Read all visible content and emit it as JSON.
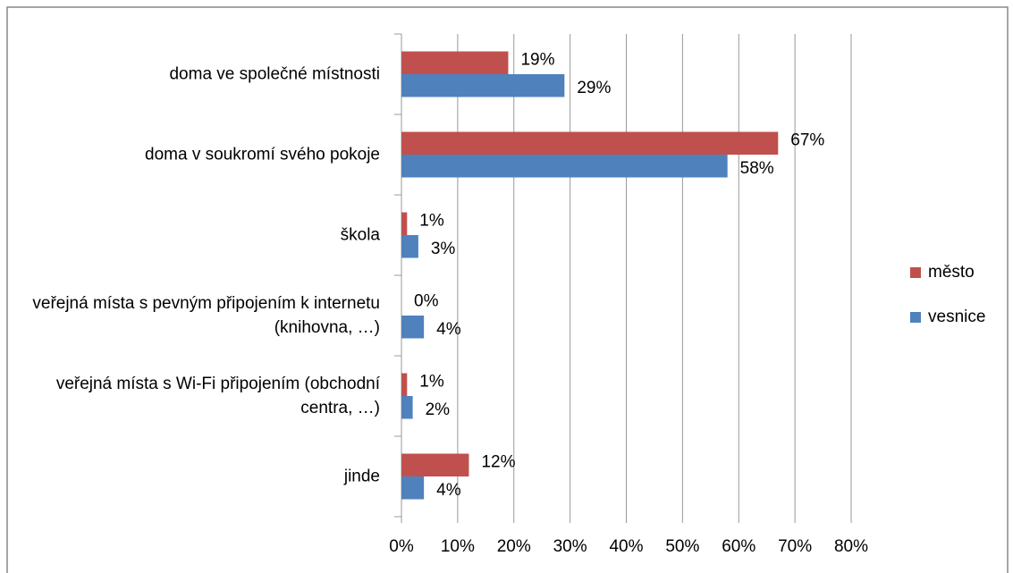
{
  "chart_data": {
    "type": "bar",
    "orientation": "horizontal",
    "categories": [
      "doma ve společné místnosti",
      "doma v soukromí svého pokoje",
      "škola",
      "veřejná místa s pevným připojením k internetu (knihovna, …)",
      "veřejná místa s Wi-Fi připojením (obchodní centra, …)",
      "jinde"
    ],
    "series": [
      {
        "name": "město",
        "color": "#c0504d",
        "values": [
          19,
          67,
          1,
          0,
          1,
          12
        ],
        "value_labels": [
          "19%",
          "67%",
          "1%",
          "0%",
          "1%",
          "12%"
        ]
      },
      {
        "name": "vesnice",
        "color": "#4f81bd",
        "values": [
          29,
          58,
          3,
          4,
          2,
          4
        ],
        "value_labels": [
          "29%",
          "58%",
          "3%",
          "4%",
          "2%",
          "4%"
        ]
      }
    ],
    "xlim": [
      0,
      80
    ],
    "xticks": [
      {
        "value": 0,
        "label": "0%"
      },
      {
        "value": 10,
        "label": "10%"
      },
      {
        "value": 20,
        "label": "20%"
      },
      {
        "value": 30,
        "label": "30%"
      },
      {
        "value": 40,
        "label": "40%"
      },
      {
        "value": 50,
        "label": "50%"
      },
      {
        "value": 60,
        "label": "60%"
      },
      {
        "value": 70,
        "label": "70%"
      },
      {
        "value": 80,
        "label": "80%"
      }
    ],
    "grid": true,
    "legend": "right"
  }
}
